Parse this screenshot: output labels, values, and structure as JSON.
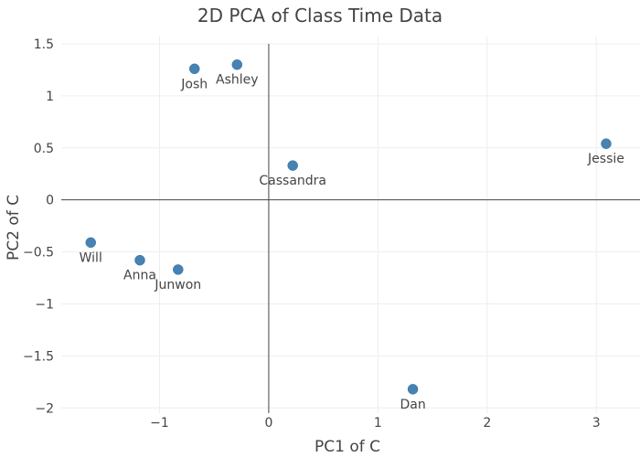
{
  "chart_data": {
    "type": "scatter",
    "title": "2D PCA of Class Time Data",
    "xlabel": "PC1 of C",
    "ylabel": "PC2 of C",
    "xlim": [
      -1.9,
      3.4
    ],
    "ylim": [
      -2.05,
      1.57
    ],
    "xticks": [
      -1,
      0,
      1,
      2,
      3
    ],
    "xtick_labels": [
      "−1",
      "0",
      "1",
      "2",
      "3"
    ],
    "yticks": [
      1.5,
      1,
      0.5,
      0,
      -0.5,
      -1,
      -1.5,
      -2
    ],
    "ytick_labels": [
      "1.5",
      "1",
      "0.5",
      "0",
      "−0.5",
      "−1",
      "−1.5",
      "−2"
    ],
    "grid": true,
    "marker_color": "#4682b4",
    "points": [
      {
        "label": "Josh",
        "x": -0.68,
        "y": 1.26
      },
      {
        "label": "Ashley",
        "x": -0.29,
        "y": 1.3
      },
      {
        "label": "Cassandra",
        "x": 0.22,
        "y": 0.33
      },
      {
        "label": "Jessie",
        "x": 3.09,
        "y": 0.54
      },
      {
        "label": "Will",
        "x": -1.63,
        "y": -0.41
      },
      {
        "label": "Anna",
        "x": -1.18,
        "y": -0.58
      },
      {
        "label": "Junwon",
        "x": -0.83,
        "y": -0.67
      },
      {
        "label": "Dan",
        "x": 1.32,
        "y": -1.82
      }
    ]
  }
}
